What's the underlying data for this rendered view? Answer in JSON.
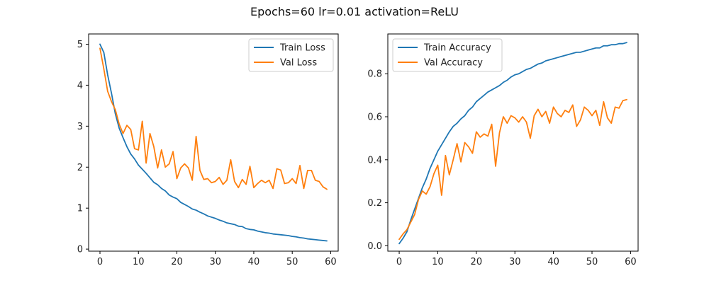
{
  "figure": {
    "suptitle": "Epochs=60 lr=0.01 activation=ReLU"
  },
  "colors": {
    "train": "#1f77b4",
    "val": "#ff7f0e",
    "axes": "#000000",
    "background": "#ffffff"
  },
  "chart_data": [
    {
      "type": "line",
      "title": "",
      "xlabel": "",
      "ylabel": "",
      "xlim": [
        -2.95,
        61.95
      ],
      "ylim": [
        -0.05,
        5.25
      ],
      "xticks": [
        0,
        10,
        20,
        30,
        40,
        50,
        60
      ],
      "yticks": [
        0,
        1,
        2,
        3,
        4,
        5
      ],
      "grid": false,
      "legend_position": "top-right",
      "x": [
        0,
        1,
        2,
        3,
        4,
        5,
        6,
        7,
        8,
        9,
        10,
        11,
        12,
        13,
        14,
        15,
        16,
        17,
        18,
        19,
        20,
        21,
        22,
        23,
        24,
        25,
        26,
        27,
        28,
        29,
        30,
        31,
        32,
        33,
        34,
        35,
        36,
        37,
        38,
        39,
        40,
        41,
        42,
        43,
        44,
        45,
        46,
        47,
        48,
        49,
        50,
        51,
        52,
        53,
        54,
        55,
        56,
        57,
        58,
        59
      ],
      "series": [
        {
          "name": "Train Loss",
          "color": "#1f77b4",
          "values": [
            5.0,
            4.8,
            4.25,
            3.8,
            3.3,
            2.95,
            2.72,
            2.5,
            2.32,
            2.2,
            2.05,
            1.95,
            1.85,
            1.74,
            1.63,
            1.57,
            1.48,
            1.42,
            1.32,
            1.27,
            1.23,
            1.14,
            1.09,
            1.04,
            0.98,
            0.95,
            0.9,
            0.86,
            0.81,
            0.78,
            0.75,
            0.71,
            0.68,
            0.64,
            0.62,
            0.6,
            0.56,
            0.55,
            0.5,
            0.48,
            0.47,
            0.44,
            0.42,
            0.4,
            0.39,
            0.37,
            0.36,
            0.35,
            0.34,
            0.33,
            0.31,
            0.3,
            0.28,
            0.27,
            0.25,
            0.24,
            0.23,
            0.22,
            0.21,
            0.2
          ]
        },
        {
          "name": "Val Loss",
          "color": "#ff7f0e",
          "values": [
            4.9,
            4.4,
            3.85,
            3.6,
            3.4,
            3.05,
            2.82,
            3.02,
            2.92,
            2.45,
            2.42,
            3.12,
            2.1,
            2.82,
            2.5,
            1.98,
            2.42,
            2.0,
            2.08,
            2.38,
            1.72,
            1.98,
            2.08,
            1.98,
            1.68,
            2.75,
            1.92,
            1.7,
            1.72,
            1.62,
            1.65,
            1.75,
            1.58,
            1.68,
            2.18,
            1.65,
            1.5,
            1.7,
            1.58,
            2.02,
            1.5,
            1.6,
            1.68,
            1.62,
            1.68,
            1.48,
            1.96,
            1.93,
            1.6,
            1.62,
            1.72,
            1.6,
            2.04,
            1.48,
            1.92,
            1.92,
            1.68,
            1.65,
            1.52,
            1.46
          ]
        }
      ]
    },
    {
      "type": "line",
      "title": "",
      "xlabel": "",
      "ylabel": "",
      "xlim": [
        -2.95,
        61.95
      ],
      "ylim": [
        -0.025,
        0.985
      ],
      "xticks": [
        0,
        10,
        20,
        30,
        40,
        50,
        60
      ],
      "yticks": [
        0.0,
        0.2,
        0.4,
        0.6,
        0.8
      ],
      "grid": false,
      "legend_position": "top-left",
      "x": [
        0,
        1,
        2,
        3,
        4,
        5,
        6,
        7,
        8,
        9,
        10,
        11,
        12,
        13,
        14,
        15,
        16,
        17,
        18,
        19,
        20,
        21,
        22,
        23,
        24,
        25,
        26,
        27,
        28,
        29,
        30,
        31,
        32,
        33,
        34,
        35,
        36,
        37,
        38,
        39,
        40,
        41,
        42,
        43,
        44,
        45,
        46,
        47,
        48,
        49,
        50,
        51,
        52,
        53,
        54,
        55,
        56,
        57,
        58,
        59
      ],
      "series": [
        {
          "name": "Train Accuracy",
          "color": "#1f77b4",
          "values": [
            0.01,
            0.035,
            0.065,
            0.12,
            0.17,
            0.22,
            0.27,
            0.31,
            0.36,
            0.4,
            0.44,
            0.47,
            0.5,
            0.53,
            0.555,
            0.57,
            0.59,
            0.605,
            0.63,
            0.645,
            0.67,
            0.685,
            0.7,
            0.715,
            0.725,
            0.735,
            0.745,
            0.76,
            0.77,
            0.785,
            0.795,
            0.8,
            0.81,
            0.82,
            0.825,
            0.835,
            0.845,
            0.85,
            0.86,
            0.865,
            0.87,
            0.875,
            0.88,
            0.885,
            0.89,
            0.895,
            0.9,
            0.9,
            0.905,
            0.91,
            0.915,
            0.92,
            0.92,
            0.93,
            0.93,
            0.935,
            0.935,
            0.94,
            0.94,
            0.945
          ]
        },
        {
          "name": "Val Accuracy",
          "color": "#ff7f0e",
          "values": [
            0.03,
            0.055,
            0.075,
            0.11,
            0.145,
            0.215,
            0.255,
            0.24,
            0.275,
            0.335,
            0.375,
            0.235,
            0.42,
            0.33,
            0.4,
            0.475,
            0.39,
            0.48,
            0.46,
            0.43,
            0.53,
            0.505,
            0.52,
            0.51,
            0.565,
            0.37,
            0.525,
            0.6,
            0.57,
            0.605,
            0.595,
            0.575,
            0.6,
            0.575,
            0.5,
            0.605,
            0.635,
            0.6,
            0.625,
            0.57,
            0.645,
            0.615,
            0.6,
            0.63,
            0.62,
            0.655,
            0.555,
            0.585,
            0.645,
            0.63,
            0.605,
            0.63,
            0.56,
            0.67,
            0.595,
            0.57,
            0.645,
            0.64,
            0.675,
            0.68
          ]
        }
      ]
    }
  ]
}
